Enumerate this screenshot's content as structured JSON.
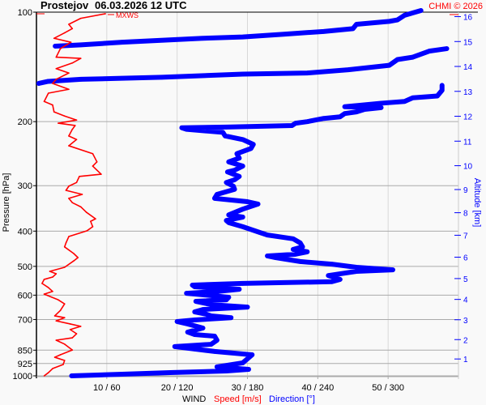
{
  "header": {
    "station": "Prostejov",
    "datetime": "06.03.2026 12 UTC",
    "copyright": "CHMI © 2026"
  },
  "colors": {
    "speed": "#ff0000",
    "direction": "#0000ff",
    "grid": "#aaaaaa",
    "vgrid": "#d8d8d8",
    "background": "#f9f9f9"
  },
  "chart_data": {
    "type": "line",
    "title": "Prostejov    06.03.2026 12 UTC",
    "ylabel": "Pressure [hPa]",
    "y2label": "Altitude [km]",
    "xlabel": {
      "prefix": "WIND",
      "speed": "Speed [m/s]",
      "direction": "Direction [°]"
    },
    "y_scale": "log",
    "ylim": [
      1000,
      100
    ],
    "y_ticks": [
      100,
      200,
      300,
      400,
      500,
      600,
      700,
      850,
      925,
      1000
    ],
    "y2_ticks": [
      1,
      2,
      3,
      4,
      5,
      6,
      7,
      8,
      9,
      10,
      11,
      12,
      13,
      14,
      15,
      16
    ],
    "x_speed_lim": [
      0,
      60
    ],
    "x_direction_lim": [
      0,
      360
    ],
    "x_ticks": [
      "10 / 60",
      "20 / 120",
      "30 / 180",
      "40 / 240",
      "50 / 300"
    ],
    "x_tick_values_speed": [
      10,
      20,
      30,
      40,
      50
    ],
    "grid": true,
    "mxws_label": "MXWS",
    "series": [
      {
        "name": "Speed [m/s]",
        "color": "#ff0000",
        "points": [
          [
            1000,
            1.1
          ],
          [
            980,
            1.7
          ],
          [
            955,
            2.3
          ],
          [
            931,
            3.8
          ],
          [
            907,
            4.0
          ],
          [
            889,
            2.6
          ],
          [
            875,
            3.4
          ],
          [
            849,
            5.1
          ],
          [
            818,
            4.0
          ],
          [
            798,
            2.8
          ],
          [
            786,
            5.1
          ],
          [
            766,
            5.7
          ],
          [
            746,
            4.8
          ],
          [
            731,
            6.3
          ],
          [
            720,
            4.8
          ],
          [
            706,
            2.8
          ],
          [
            692,
            4.0
          ],
          [
            684,
            2.6
          ],
          [
            661,
            3.4
          ],
          [
            634,
            4.0
          ],
          [
            618,
            3.1
          ],
          [
            596,
            1.1
          ],
          [
            586,
            2.3
          ],
          [
            572,
            1.7
          ],
          [
            557,
            0.8
          ],
          [
            543,
            1.1
          ],
          [
            535,
            2.3
          ],
          [
            524,
            2.8
          ],
          [
            516,
            1.9
          ],
          [
            503,
            4.0
          ],
          [
            483,
            5.3
          ],
          [
            473,
            5.9
          ],
          [
            461,
            5.3
          ],
          [
            442,
            4.0
          ],
          [
            431,
            4.2
          ],
          [
            414,
            4.6
          ],
          [
            399,
            7.2
          ],
          [
            389,
            8.0
          ],
          [
            376,
            7.7
          ],
          [
            370,
            8.4
          ],
          [
            355,
            7.1
          ],
          [
            343,
            6.3
          ],
          [
            334,
            5.1
          ],
          [
            325,
            4.6
          ],
          [
            317,
            6.5
          ],
          [
            309,
            4.2
          ],
          [
            301,
            4.6
          ],
          [
            294,
            5.7
          ],
          [
            283,
            6.1
          ],
          [
            279,
            9.2
          ],
          [
            265,
            8.0
          ],
          [
            258,
            8.6
          ],
          [
            245,
            8.0
          ],
          [
            233,
            4.6
          ],
          [
            224,
            5.7
          ],
          [
            219,
            4.6
          ],
          [
            210,
            5.1
          ],
          [
            205,
            5.5
          ],
          [
            202,
            3.1
          ],
          [
            198,
            5.7
          ],
          [
            193,
            4.0
          ],
          [
            188,
            2.5
          ],
          [
            180,
            2.3
          ],
          [
            176,
            1.1
          ],
          [
            167,
            1.7
          ],
          [
            163,
            4.6
          ],
          [
            157,
            2.3
          ],
          [
            153,
            2.8
          ],
          [
            147,
            4.6
          ],
          [
            143,
            2.8
          ],
          [
            138,
            5.1
          ],
          [
            134,
            6.3
          ],
          [
            133,
            2.8
          ],
          [
            126,
            3.4
          ],
          [
            121,
            4.9
          ],
          [
            118,
            2.5
          ],
          [
            114,
            4.0
          ],
          [
            111,
            5.1
          ],
          [
            108,
            4.6
          ],
          [
            104,
            6.3
          ],
          [
            101,
            9.8
          ]
        ]
      },
      {
        "name": "Direction [°]",
        "color": "#0000ff",
        "points": [
          [
            1000,
            30
          ],
          [
            990,
            73
          ],
          [
            980,
            114
          ],
          [
            970,
            162
          ],
          [
            960,
            181
          ],
          [
            945,
            154
          ],
          [
            921,
            176
          ],
          [
            875,
            184
          ],
          [
            857,
            152
          ],
          [
            844,
            135
          ],
          [
            831,
            118
          ],
          [
            819,
            149
          ],
          [
            798,
            154
          ],
          [
            778,
            152
          ],
          [
            770,
            135
          ],
          [
            758,
            129
          ],
          [
            739,
            142
          ],
          [
            720,
            129
          ],
          [
            709,
            120
          ],
          [
            702,
            135
          ],
          [
            692,
            166
          ],
          [
            684,
            149
          ],
          [
            677,
            145
          ],
          [
            667,
            135
          ],
          [
            657,
            142
          ],
          [
            647,
            180
          ],
          [
            637,
            149
          ],
          [
            624,
            136
          ],
          [
            618,
            162
          ],
          [
            608,
            164
          ],
          [
            596,
            136
          ],
          [
            593,
            128
          ],
          [
            586,
            155
          ],
          [
            578,
            173
          ],
          [
            569,
            135
          ],
          [
            563,
            133
          ],
          [
            557,
            176
          ],
          [
            551,
            252
          ],
          [
            543,
            259
          ],
          [
            530,
            249
          ],
          [
            516,
            273
          ],
          [
            511,
            304
          ],
          [
            503,
            273
          ],
          [
            493,
            252
          ],
          [
            485,
            225
          ],
          [
            473,
            204
          ],
          [
            468,
            197
          ],
          [
            463,
            221
          ],
          [
            456,
            231
          ],
          [
            449,
            219
          ],
          [
            442,
            227
          ],
          [
            431,
            225
          ],
          [
            420,
            219
          ],
          [
            410,
            197
          ],
          [
            403,
            190
          ],
          [
            389,
            176
          ],
          [
            379,
            164
          ],
          [
            374,
            162
          ],
          [
            366,
            176
          ],
          [
            361,
            164
          ],
          [
            348,
            176
          ],
          [
            337,
            189
          ],
          [
            332,
            180
          ],
          [
            325,
            152
          ],
          [
            317,
            154
          ],
          [
            307,
            169
          ],
          [
            301,
            168
          ],
          [
            294,
            162
          ],
          [
            289,
            169
          ],
          [
            283,
            173
          ],
          [
            275,
            163
          ],
          [
            272,
            169
          ],
          [
            265,
            176
          ],
          [
            258,
            164
          ],
          [
            252,
            173
          ],
          [
            245,
            171
          ],
          [
            237,
            183
          ],
          [
            231,
            185
          ],
          [
            224,
            176
          ],
          [
            219,
            161
          ],
          [
            214,
            159
          ],
          [
            210,
            128
          ],
          [
            208,
            124
          ],
          [
            207,
            162
          ],
          [
            205,
            218
          ],
          [
            202,
            221
          ],
          [
            200,
            231
          ],
          [
            196,
            245
          ],
          [
            194,
            259
          ],
          [
            190,
            263
          ],
          [
            188,
            273
          ],
          [
            185,
            280
          ],
          [
            183,
            294
          ],
          [
            182,
            263
          ],
          [
            178,
            294
          ],
          [
            176,
            314
          ],
          [
            172,
            321
          ],
          [
            170,
            342
          ],
          [
            164,
            346
          ],
          [
            159,
            346
          ],
          [
            157,
            2
          ],
          [
            155,
            10
          ],
          [
            153,
            38
          ],
          [
            152,
            73
          ],
          [
            151,
            107
          ],
          [
            148,
            176
          ],
          [
            147,
            231
          ],
          [
            144,
            266
          ],
          [
            140,
            301
          ],
          [
            135,
            308
          ],
          [
            133,
            321
          ],
          [
            128,
            335
          ],
          [
            126,
            350
          ],
          [
            124,
            16
          ],
          [
            123,
            38
          ],
          [
            121,
            73
          ],
          [
            118,
            142
          ],
          [
            117,
            176
          ],
          [
            115,
            211
          ],
          [
            113,
            245
          ],
          [
            111,
            270
          ],
          [
            108,
            273
          ],
          [
            106,
            301
          ],
          [
            105,
            308
          ],
          [
            102,
            314
          ],
          [
            99,
            328
          ]
        ]
      }
    ]
  }
}
